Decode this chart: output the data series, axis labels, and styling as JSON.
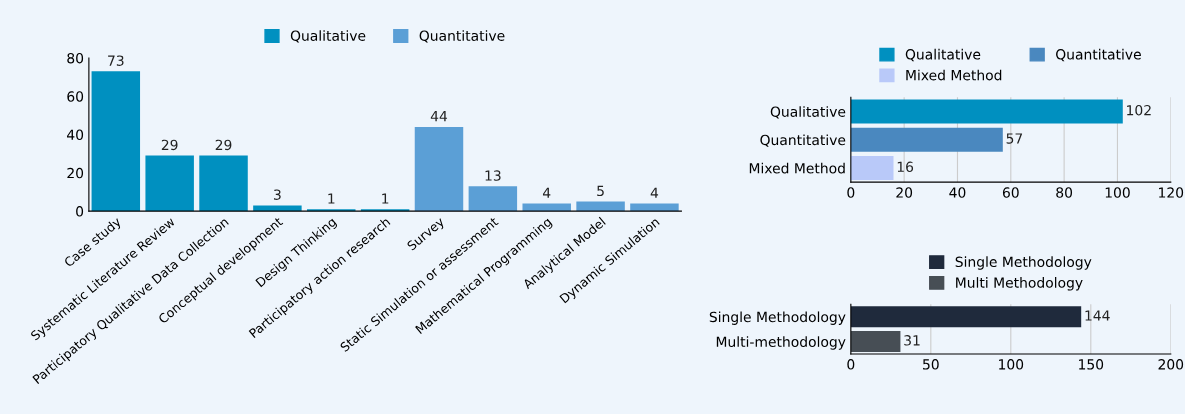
{
  "chart_data": [
    {
      "type": "bar",
      "categories": [
        "Case study",
        "Systematic Literature Review",
        "Participatory Qualitative Data Collection",
        "Conceptual development",
        "Design Thinking",
        "Participatory action research",
        "Survey",
        "Static Simulation or assessment",
        "Mathematical Programming",
        "Analytical Model",
        "Dynamic Simulation"
      ],
      "series": [
        {
          "name": "Qualitative",
          "color": "#0090c0",
          "values": [
            73,
            29,
            29,
            3,
            1,
            1,
            null,
            null,
            null,
            null,
            null
          ]
        },
        {
          "name": "Quantitative",
          "color": "#5b9fd6",
          "values": [
            null,
            null,
            null,
            null,
            null,
            null,
            44,
            13,
            4,
            5,
            4
          ]
        }
      ],
      "ylim": [
        0,
        80
      ],
      "yticks": [
        0,
        20,
        40,
        60,
        80
      ],
      "data_labels": true,
      "grid": false,
      "legend": "top"
    },
    {
      "type": "bar",
      "orientation": "horizontal",
      "categories": [
        "Qualitative",
        "Quantitative",
        "Mixed Method"
      ],
      "series": [
        {
          "name": "Qualitative",
          "color": "#0090c0",
          "values": [
            102,
            null,
            null
          ]
        },
        {
          "name": "Quantitative",
          "color": "#4a88bf",
          "values": [
            null,
            57,
            null
          ]
        },
        {
          "name": "Mixed Method",
          "color": "#b9c9f9",
          "values": [
            null,
            null,
            16
          ]
        }
      ],
      "xlim": [
        0,
        120
      ],
      "xticks": [
        0,
        20,
        40,
        60,
        80,
        100,
        120
      ],
      "data_labels": true,
      "grid": "x",
      "legend": "top"
    },
    {
      "type": "bar",
      "orientation": "horizontal",
      "categories": [
        "Single Methodology",
        "Multi-methodology"
      ],
      "series": [
        {
          "name": "Single Methodology",
          "color": "#1f2a3c",
          "values": [
            144,
            null
          ]
        },
        {
          "name": "Multi Methodology",
          "color": "#474e55",
          "values": [
            null,
            31
          ]
        }
      ],
      "xlim": [
        0,
        200
      ],
      "xticks": [
        0,
        50,
        100,
        150,
        200
      ],
      "data_labels": true,
      "grid": "x",
      "legend": "top"
    }
  ]
}
